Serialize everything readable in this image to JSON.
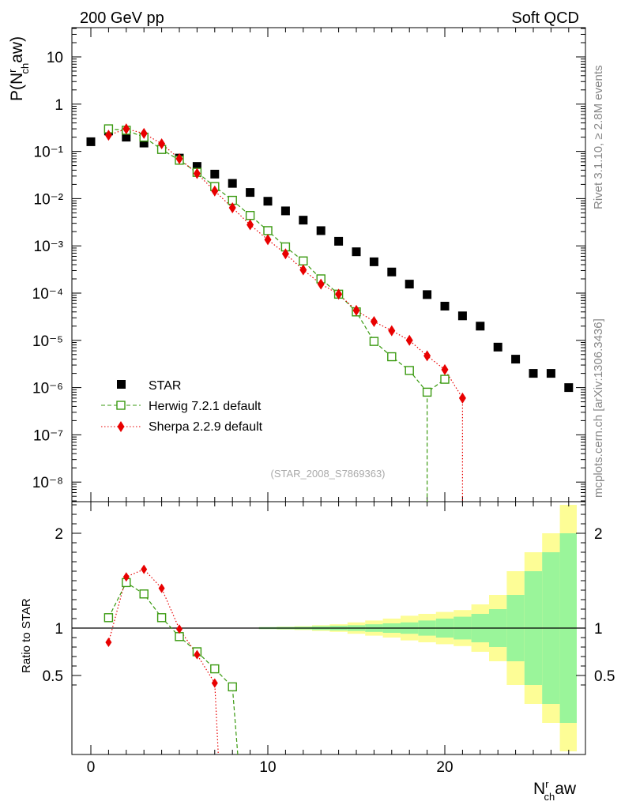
{
  "header": {
    "left": "200 GeV pp",
    "right": "Soft QCD"
  },
  "side_labels": {
    "rivet": "Rivet 3.1.10, ≥ 2.8M events",
    "mcplots": "mcplots.cern.ch [arXiv:1306.3436]"
  },
  "analysis_id": "(STAR_2008_S7869363)",
  "colors": {
    "star": "#000000",
    "herwig": "#3a9a10",
    "sherpa": "#e80000",
    "band_inner": "#9af59a",
    "band_outer": "#fdfd96"
  },
  "chart_data": [
    {
      "type": "scatter",
      "panel": "main",
      "ylabel": {
        "base": "P(N",
        "sup": "r",
        "sub": "ch",
        "tail": "aw)"
      },
      "yscale": "log",
      "ylim": [
        4e-09,
        40
      ],
      "xlim": [
        -0.5,
        27.5
      ],
      "legend_position": "bottom-left",
      "series": [
        {
          "name": "STAR",
          "marker": "filled-square",
          "x": [
            0,
            1,
            2,
            3,
            4,
            5,
            6,
            7,
            8,
            9,
            10,
            11,
            12,
            13,
            14,
            15,
            16,
            17,
            18,
            19,
            20,
            21,
            22,
            23,
            24,
            25,
            26,
            27
          ],
          "y": [
            0.16,
            0.27,
            0.2,
            0.15,
            0.11,
            0.072,
            0.048,
            0.033,
            0.021,
            0.0135,
            0.0088,
            0.0055,
            0.0035,
            0.0021,
            0.00125,
            0.00075,
            0.00046,
            0.00028,
            0.000155,
            9.3e-05,
            5.3e-05,
            3.3e-05,
            2e-05,
            7.2e-06,
            4e-06,
            2e-06,
            2e-06,
            1e-06
          ]
        },
        {
          "name": "Herwig 7.2.1 default",
          "marker": "open-square",
          "line": "dashed",
          "x": [
            1,
            2,
            3,
            4,
            5,
            6,
            7,
            8,
            9,
            10,
            11,
            12,
            13,
            14,
            15,
            16,
            17,
            18,
            19,
            20
          ],
          "y": [
            0.3,
            0.28,
            0.2,
            0.11,
            0.065,
            0.036,
            0.018,
            0.0092,
            0.0044,
            0.0021,
            0.00095,
            0.00048,
            0.0002,
            9.5e-05,
            4e-05,
            9.5e-06,
            4.5e-06,
            2.3e-06,
            8e-07,
            1.5e-06
          ]
        },
        {
          "name": "Sherpa 2.2.9 default",
          "marker": "diamond",
          "line": "dotted",
          "x": [
            1,
            2,
            3,
            4,
            5,
            6,
            7,
            8,
            9,
            10,
            11,
            12,
            13,
            14,
            15,
            16,
            17,
            18,
            19,
            20,
            21
          ],
          "y": [
            0.22,
            0.3,
            0.24,
            0.145,
            0.07,
            0.034,
            0.0145,
            0.0064,
            0.0028,
            0.00135,
            0.00068,
            0.00031,
            0.000155,
            9.5e-05,
            4.3e-05,
            2.5e-05,
            1.6e-05,
            1e-05,
            4.7e-06,
            2.4e-06,
            6e-07
          ]
        }
      ],
      "yticks": [
        "10⁻⁸",
        "10⁻⁷",
        "10⁻⁶",
        "10⁻⁵",
        "10⁻⁴",
        "10⁻³",
        "10⁻²",
        "10⁻¹",
        "1",
        "10"
      ]
    },
    {
      "type": "line",
      "panel": "ratio",
      "ylabel": "Ratio to STAR",
      "ylim": [
        0.35,
        2.35
      ],
      "xlim": [
        -0.5,
        27.5
      ],
      "yticks": [
        "0.5",
        "1",
        "2"
      ],
      "xticks": [
        "0",
        "10",
        "20"
      ],
      "xlabel": {
        "base": "N",
        "sup": "r",
        "sub": "ch",
        "tail": "aw"
      },
      "series": [
        {
          "name": "Herwig 7.2.1 default",
          "x": [
            1,
            2,
            3,
            4,
            5,
            6,
            7,
            8
          ],
          "y": [
            1.11,
            1.48,
            1.36,
            1.11,
            0.91,
            0.75,
            0.57,
            0.38
          ]
        },
        {
          "name": "Sherpa 2.2.9 default",
          "x": [
            1,
            2,
            3,
            4,
            5,
            6,
            7
          ],
          "y": [
            0.85,
            1.54,
            1.62,
            1.42,
            0.99,
            0.72,
            0.42
          ]
        }
      ],
      "uncertainty_band": {
        "bins": [
          10,
          11,
          12,
          13,
          14,
          15,
          16,
          17,
          18,
          19,
          20,
          21,
          22,
          23,
          24,
          25,
          26,
          27
        ],
        "inner": [
          0.01,
          0.012,
          0.014,
          0.02,
          0.025,
          0.03,
          0.04,
          0.05,
          0.06,
          0.08,
          0.1,
          0.12,
          0.15,
          0.2,
          0.35,
          0.6,
          0.8,
          1.0
        ],
        "outer": [
          0.01,
          0.015,
          0.02,
          0.03,
          0.04,
          0.06,
          0.08,
          0.1,
          0.13,
          0.15,
          0.17,
          0.19,
          0.25,
          0.35,
          0.6,
          0.8,
          1.0,
          1.3
        ]
      }
    }
  ]
}
